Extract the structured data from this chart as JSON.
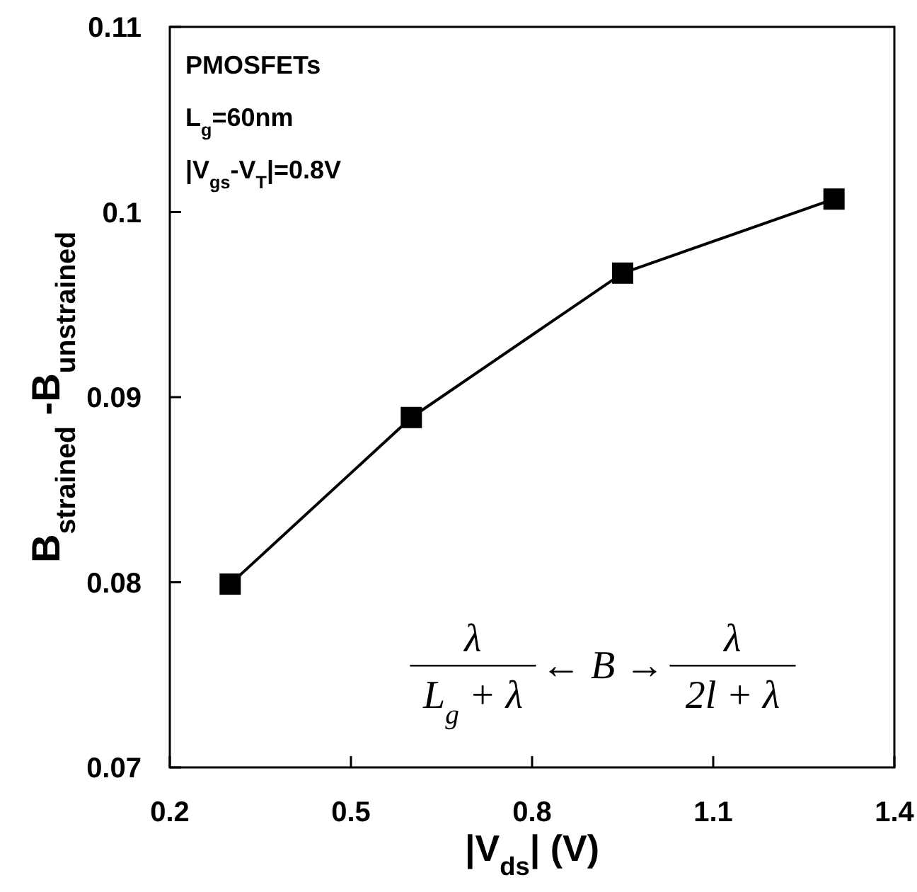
{
  "chart_data": {
    "type": "line",
    "xlabel": "|V$_{ds}$| (V)",
    "ylabel": "B$_{strained}$ -B$_{unstrained}$",
    "x": [
      0.3,
      0.6,
      0.95,
      1.3
    ],
    "series": [
      {
        "color": "#000000",
        "values": [
          0.0799,
          0.0889,
          0.0967,
          0.1007
        ]
      }
    ],
    "xlim": [
      0.2,
      1.4
    ],
    "xticks": [
      0.2,
      0.5,
      0.8,
      1.1,
      1.4
    ],
    "ylim": [
      0.07,
      0.11
    ],
    "yticks": [
      0.07,
      0.08,
      0.09,
      0.1,
      0.11
    ],
    "grid": false,
    "marker": "square",
    "line_style": "solid",
    "annotations": [
      "PMOSFETs",
      "L$_{g}$=60nm",
      "|V$_{gs}$-V$_{T}$|=0.8V",
      "λ",
      "L$_{g}$ + λ",
      "← B →",
      "λ",
      "2l + λ"
    ]
  }
}
